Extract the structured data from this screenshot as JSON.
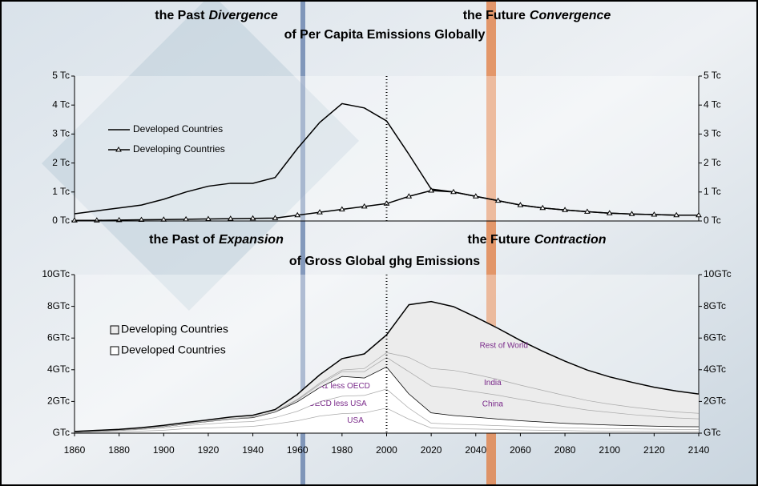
{
  "chart_data": [
    {
      "type": "line",
      "title_left": {
        "plain": "the Past",
        "italic": "Divergence"
      },
      "title_right": {
        "plain": "the Future",
        "italic": "Convergence"
      },
      "title_line2": "of Per Capita Emissions Globally",
      "x": [
        1860,
        1870,
        1880,
        1890,
        1900,
        1910,
        1920,
        1930,
        1940,
        1950,
        1960,
        1970,
        1980,
        1990,
        2000,
        2010,
        2020,
        2030,
        2040,
        2050,
        2060,
        2070,
        2080,
        2090,
        2100,
        2110,
        2120,
        2130,
        2140
      ],
      "xlim": [
        1860,
        2140
      ],
      "ylim": [
        0,
        5
      ],
      "yticks": [
        {
          "value": 0,
          "label": "0 Tc"
        },
        {
          "value": 1,
          "label": "1 Tc"
        },
        {
          "value": 2,
          "label": "2 Tc"
        },
        {
          "value": 3,
          "label": "3 Tc"
        },
        {
          "value": 4,
          "label": "4 Tc"
        },
        {
          "value": 5,
          "label": "5 Tc"
        }
      ],
      "right_axis": true,
      "divider_x": 2000,
      "legend": "upper left",
      "series": [
        {
          "name": "Developed Countries",
          "color": "#000000",
          "marker": "none",
          "values": [
            0.25,
            0.35,
            0.45,
            0.55,
            0.75,
            1.0,
            1.2,
            1.3,
            1.3,
            1.5,
            2.5,
            3.4,
            4.05,
            3.9,
            3.45,
            2.3,
            1.1,
            1.0,
            0.85,
            0.7,
            0.55,
            0.45,
            0.38,
            0.32,
            0.27,
            0.24,
            0.22,
            0.2,
            0.2
          ]
        },
        {
          "name": "Developing Countries",
          "color": "#000000",
          "marker": "triangle",
          "values": [
            0.02,
            0.02,
            0.03,
            0.04,
            0.05,
            0.06,
            0.07,
            0.08,
            0.09,
            0.1,
            0.2,
            0.3,
            0.4,
            0.5,
            0.6,
            0.85,
            1.05,
            1.0,
            0.85,
            0.7,
            0.55,
            0.45,
            0.38,
            0.32,
            0.27,
            0.24,
            0.22,
            0.2,
            0.2
          ]
        }
      ]
    },
    {
      "type": "stacked_area",
      "title_left": {
        "plain": "the Past of",
        "italic": "Expansion"
      },
      "title_right": {
        "plain": "the Future",
        "italic": "Contraction"
      },
      "title_line2": "of Gross Global  ghg Emissions",
      "x": [
        1860,
        1870,
        1880,
        1890,
        1900,
        1910,
        1920,
        1930,
        1940,
        1950,
        1960,
        1970,
        1980,
        1990,
        2000,
        2010,
        2020,
        2030,
        2040,
        2050,
        2060,
        2070,
        2080,
        2090,
        2100,
        2110,
        2120,
        2130,
        2140
      ],
      "xlim": [
        1860,
        2140
      ],
      "xticks": [
        1860,
        1880,
        1900,
        1920,
        1940,
        1960,
        1980,
        2000,
        2020,
        2040,
        2060,
        2080,
        2100,
        2120,
        2140
      ],
      "ylim": [
        0,
        10
      ],
      "yticks": [
        {
          "value": 0,
          "label": "GTc"
        },
        {
          "value": 2,
          "label": "2GTc"
        },
        {
          "value": 4,
          "label": "4GTc"
        },
        {
          "value": 6,
          "label": "6GTc"
        },
        {
          "value": 8,
          "label": "8GTc"
        },
        {
          "value": 10,
          "label": "10GTc"
        }
      ],
      "right_axis": true,
      "divider_x": 2000,
      "legend": [
        "Developing Countries",
        "Developed Countries"
      ],
      "series": [
        {
          "name": "USA",
          "color": "#ffffff",
          "line": "#aaaaaa",
          "values": [
            0.05,
            0.08,
            0.1,
            0.15,
            0.2,
            0.3,
            0.35,
            0.4,
            0.45,
            0.6,
            0.8,
            1.1,
            1.25,
            1.3,
            1.6,
            0.9,
            0.35,
            0.3,
            0.28,
            0.25,
            0.22,
            0.2,
            0.18,
            0.16,
            0.15,
            0.14,
            0.13,
            0.12,
            0.12
          ]
        },
        {
          "name": "OECD less USA",
          "color": "#ffffff",
          "line": "#aaaaaa",
          "values": [
            0.03,
            0.05,
            0.08,
            0.1,
            0.15,
            0.2,
            0.25,
            0.3,
            0.3,
            0.4,
            0.6,
            0.9,
            1.1,
            1.1,
            1.2,
            0.7,
            0.3,
            0.28,
            0.26,
            0.24,
            0.22,
            0.2,
            0.18,
            0.17,
            0.16,
            0.15,
            0.14,
            0.13,
            0.13
          ]
        },
        {
          "name": "A1 less OECD",
          "color": "#ffffff",
          "line": "#000000",
          "values": [
            0.01,
            0.02,
            0.03,
            0.05,
            0.08,
            0.1,
            0.15,
            0.2,
            0.25,
            0.35,
            0.6,
            0.9,
            1.25,
            1.1,
            1.4,
            0.9,
            0.65,
            0.55,
            0.48,
            0.42,
            0.36,
            0.32,
            0.28,
            0.25,
            0.22,
            0.2,
            0.19,
            0.18,
            0.17
          ]
        },
        {
          "name": "China",
          "color": "#ececec",
          "line": "#aaaaaa",
          "values": [
            0.005,
            0.005,
            0.006,
            0.008,
            0.01,
            0.012,
            0.015,
            0.018,
            0.02,
            0.02,
            0.1,
            0.2,
            0.3,
            0.4,
            0.6,
            1.4,
            1.7,
            1.7,
            1.6,
            1.5,
            1.35,
            1.2,
            1.05,
            0.9,
            0.8,
            0.7,
            0.62,
            0.55,
            0.5
          ]
        },
        {
          "name": "India",
          "color": "#ececec",
          "line": "#aaaaaa",
          "values": [
            0.005,
            0.005,
            0.006,
            0.008,
            0.01,
            0.012,
            0.015,
            0.018,
            0.02,
            0.02,
            0.05,
            0.08,
            0.1,
            0.2,
            0.3,
            0.9,
            1.1,
            1.15,
            1.1,
            1.0,
            0.9,
            0.8,
            0.7,
            0.6,
            0.52,
            0.47,
            0.42,
            0.38,
            0.35
          ]
        },
        {
          "name": "Rest of World",
          "color": "#ececec",
          "line": "#000000",
          "values": [
            0.01,
            0.015,
            0.02,
            0.03,
            0.04,
            0.05,
            0.06,
            0.08,
            0.09,
            0.1,
            0.3,
            0.5,
            0.7,
            0.9,
            1.1,
            3.3,
            4.2,
            4.0,
            3.6,
            3.2,
            2.8,
            2.45,
            2.15,
            1.9,
            1.7,
            1.55,
            1.4,
            1.3,
            1.2
          ]
        }
      ]
    }
  ]
}
